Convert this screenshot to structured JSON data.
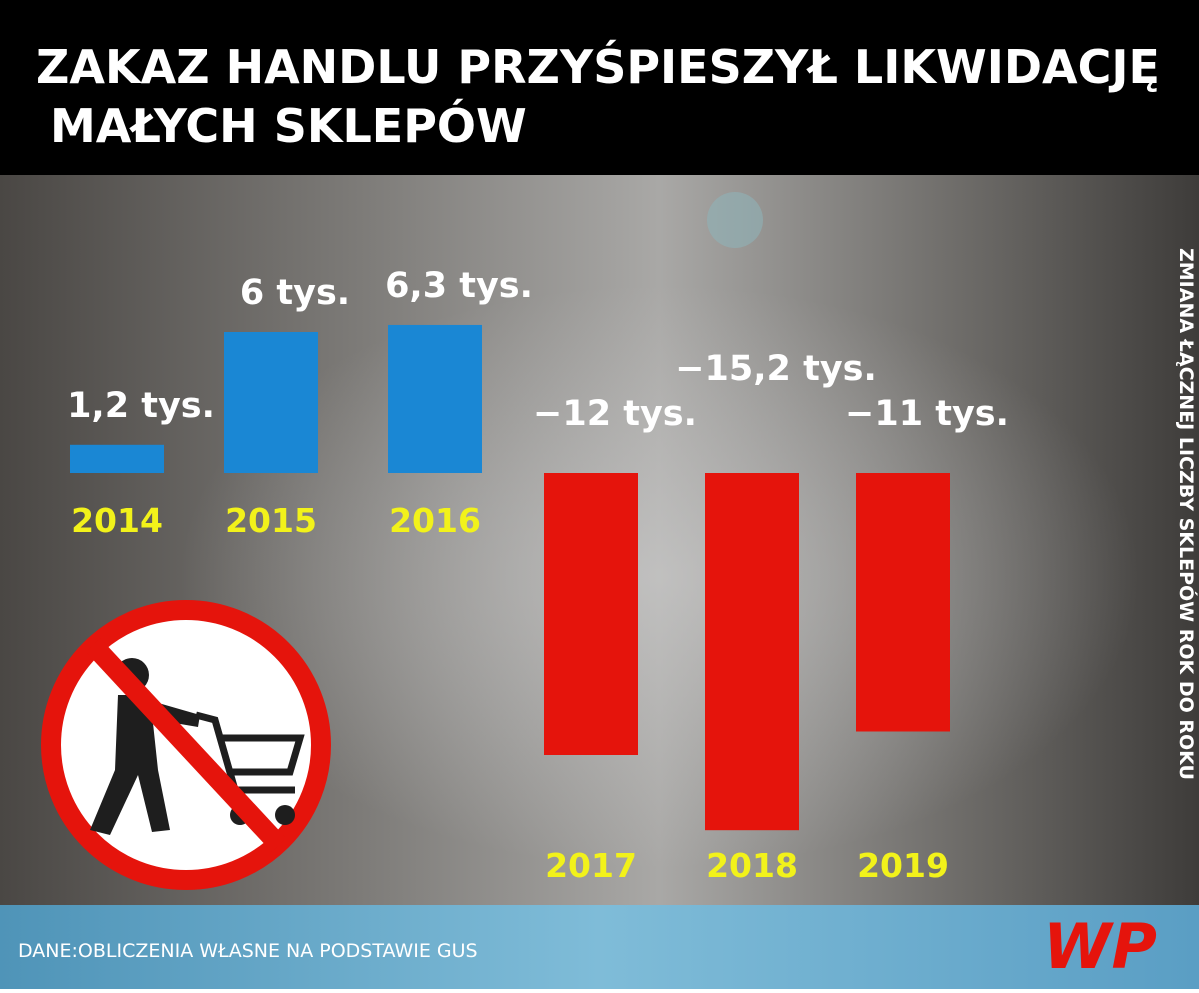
{
  "chart_data": {
    "type": "bar",
    "title_lines": [
      "ZAKAZ HANDLU PRZYŚPIESZYŁ LIKWIDACJĘ",
      "MAŁYCH SKLEPÓW"
    ],
    "y_label": "ZMIANA ŁĄCZNEJ LICZBY SKLEPÓW ROK DO ROKU",
    "categories": [
      "2014",
      "2015",
      "2016",
      "2017",
      "2018",
      "2019"
    ],
    "values": [
      1.2,
      6,
      6.3,
      -12,
      -15.2,
      -11
    ],
    "value_labels": [
      "1,2 tys.",
      "6 tys.",
      "6,3 tys.",
      "−12 tys.",
      "−15,2 tys.",
      "−11 tys."
    ],
    "positive_color": "#1a87d4",
    "negative_color": "#e5140c",
    "source": "DANE:OBLICZENIA WŁASNE NA PODSTAWIE GUS",
    "logo": "WP"
  }
}
